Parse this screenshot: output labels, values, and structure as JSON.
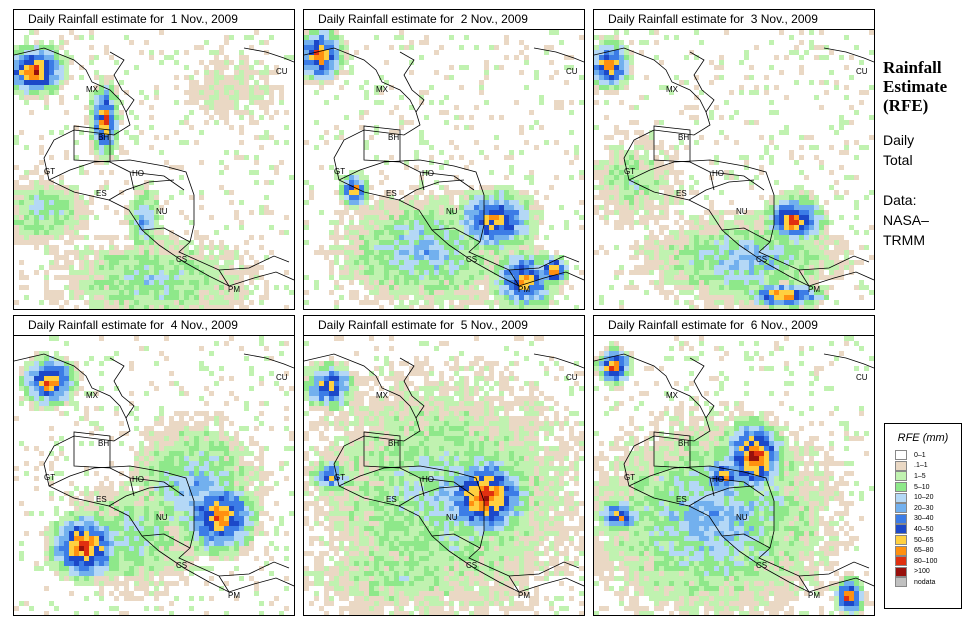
{
  "panels": [
    {
      "title": "Daily Rainfall estimate for  1 Nov., 2009"
    },
    {
      "title": "Daily Rainfall estimate for  2 Nov., 2009"
    },
    {
      "title": "Daily Rainfall estimate for  3 Nov., 2009"
    },
    {
      "title": "Daily Rainfall estimate for  4 Nov., 2009"
    },
    {
      "title": "Daily Rainfall estimate for  5 Nov., 2009"
    },
    {
      "title": "Daily Rainfall estimate for  6 Nov., 2009"
    }
  ],
  "country_labels": [
    "CU",
    "MX",
    "BH",
    "GT",
    "HO",
    "ES",
    "NU",
    "CS",
    "PM"
  ],
  "side": {
    "title_lines": [
      "Rainfall",
      "Estimate",
      "(RFE)"
    ],
    "subtitle_lines": [
      "Daily",
      "Total"
    ],
    "source_lines": [
      "Data:",
      "NASA–",
      "TRMM"
    ]
  },
  "legend": {
    "title": "RFE (mm)",
    "items": [
      {
        "label": "0–1",
        "color": "#ffffff"
      },
      {
        "label": ".1–1",
        "color": "#ead8c4"
      },
      {
        "label": "1–5",
        "color": "#c0f2b0"
      },
      {
        "label": "5–10",
        "color": "#8ee88a"
      },
      {
        "label": "10–20",
        "color": "#b4d8f6"
      },
      {
        "label": "20–30",
        "color": "#72b0ee"
      },
      {
        "label": "30–40",
        "color": "#3c7ce6"
      },
      {
        "label": "40–50",
        "color": "#1c48c8"
      },
      {
        "label": "50–65",
        "color": "#ffd040"
      },
      {
        "label": "65–80",
        "color": "#ff9010"
      },
      {
        "label": "80–100",
        "color": "#e03010"
      },
      {
        "label": ">100",
        "color": "#98100c"
      },
      {
        "label": "nodata",
        "color": "#c0c0c0"
      }
    ]
  }
}
